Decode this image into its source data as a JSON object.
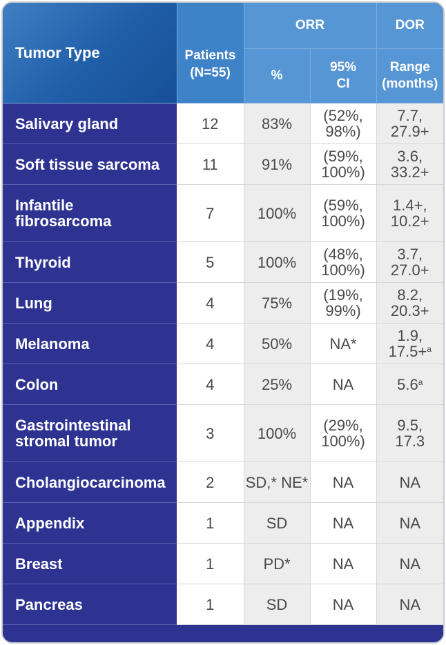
{
  "header": {
    "tumor_type": "Tumor Type",
    "patients_line1": "Patients",
    "patients_line2": "(N=55)",
    "orr_group": "ORR",
    "dor_group": "DOR",
    "orr_pct": "%",
    "orr_ci_line1": "95%",
    "orr_ci_line2": "CI",
    "dor_range_line1": "Range",
    "dor_range_line2": "(months)"
  },
  "rows": [
    {
      "tumor": [
        "Salivary gland"
      ],
      "patients": "12",
      "orr": "83%",
      "ci": [
        "(52%,",
        "98%)"
      ],
      "dor": [
        "7.7,",
        "27.9+"
      ],
      "sup": ""
    },
    {
      "tumor": [
        "Soft tissue sarcoma"
      ],
      "patients": "11",
      "orr": "91%",
      "ci": [
        "(59%,",
        "100%)"
      ],
      "dor": [
        "3.6,",
        "33.2+"
      ],
      "sup": ""
    },
    {
      "tumor": [
        "Infantile",
        "fibrosarcoma"
      ],
      "patients": "7",
      "orr": "100%",
      "ci": [
        "(59%,",
        "100%)"
      ],
      "dor": [
        "1.4+,",
        "10.2+"
      ],
      "sup": ""
    },
    {
      "tumor": [
        "Thyroid"
      ],
      "patients": "5",
      "orr": "100%",
      "ci": [
        "(48%,",
        "100%)"
      ],
      "dor": [
        "3.7,",
        "27.0+"
      ],
      "sup": ""
    },
    {
      "tumor": [
        "Lung"
      ],
      "patients": "4",
      "orr": "75%",
      "ci": [
        "(19%,",
        "99%)"
      ],
      "dor": [
        "8.2,",
        "20.3+"
      ],
      "sup": ""
    },
    {
      "tumor": [
        "Melanoma"
      ],
      "patients": "4",
      "orr": "50%",
      "ci": [
        "NA*"
      ],
      "dor": [
        "1.9,",
        "17.5+"
      ],
      "sup": "a"
    },
    {
      "tumor": [
        "Colon"
      ],
      "patients": "4",
      "orr": "25%",
      "ci": [
        "NA"
      ],
      "dor": [
        "5.6"
      ],
      "sup": "a"
    },
    {
      "tumor": [
        "Gastrointestinal",
        "stromal tumor"
      ],
      "patients": "3",
      "orr": "100%",
      "ci": [
        "(29%,",
        "100%)"
      ],
      "dor": [
        "9.5,",
        "17.3"
      ],
      "sup": ""
    },
    {
      "tumor": [
        "Cholangiocarcinoma"
      ],
      "patients": "2",
      "orr": "SD,* NE*",
      "ci": [
        "NA"
      ],
      "dor": [
        "NA"
      ],
      "sup": ""
    },
    {
      "tumor": [
        "Appendix"
      ],
      "patients": "1",
      "orr": "SD",
      "ci": [
        "NA"
      ],
      "dor": [
        "NA"
      ],
      "sup": ""
    },
    {
      "tumor": [
        "Breast"
      ],
      "patients": "1",
      "orr": "PD*",
      "ci": [
        "NA"
      ],
      "dor": [
        "NA"
      ],
      "sup": ""
    },
    {
      "tumor": [
        "Pancreas"
      ],
      "patients": "1",
      "orr": "SD",
      "ci": [
        "NA"
      ],
      "dor": [
        "NA"
      ],
      "sup": ""
    }
  ],
  "row_heights": [
    "r1",
    "r1",
    "r2",
    "r1",
    "r1",
    "r1",
    "r1",
    "r2",
    "r1",
    "r1",
    "r1",
    "r1"
  ]
}
